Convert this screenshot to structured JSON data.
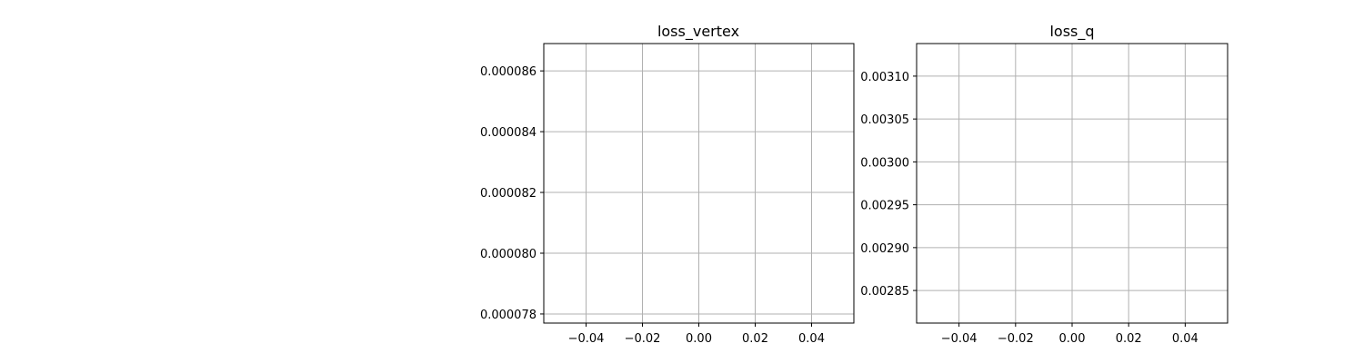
{
  "chart_data": [
    {
      "type": "line",
      "title": "loss_vertex",
      "xlabel": "",
      "ylabel": "",
      "xlim": [
        -0.055,
        0.055
      ],
      "ylim": [
        7.77e-05,
        8.69e-05
      ],
      "x_ticks": [
        -0.04,
        -0.02,
        0.0,
        0.02,
        0.04
      ],
      "x_tick_labels": [
        "−0.04",
        "−0.02",
        "0.00",
        "0.02",
        "0.04"
      ],
      "y_ticks": [
        7.8e-05,
        8e-05,
        8.2e-05,
        8.4e-05,
        8.6e-05
      ],
      "y_tick_labels": [
        "0.000078",
        "0.000080",
        "0.000082",
        "0.000084",
        "0.000086"
      ],
      "grid": true,
      "series": []
    },
    {
      "type": "line",
      "title": "loss_q",
      "xlabel": "",
      "ylabel": "",
      "xlim": [
        -0.055,
        0.055
      ],
      "ylim": [
        0.002812,
        0.003138
      ],
      "x_ticks": [
        -0.04,
        -0.02,
        0.0,
        0.02,
        0.04
      ],
      "x_tick_labels": [
        "−0.04",
        "−0.02",
        "0.00",
        "0.02",
        "0.04"
      ],
      "y_ticks": [
        0.00285,
        0.0029,
        0.00295,
        0.003,
        0.00305,
        0.0031
      ],
      "y_tick_labels": [
        "0.00285",
        "0.00290",
        "0.00295",
        "0.00300",
        "0.00305",
        "0.00310"
      ],
      "grid": true,
      "series": []
    }
  ],
  "colors": {
    "grid": "#b0b0b0",
    "axes": "#000000",
    "background": "#ffffff"
  }
}
